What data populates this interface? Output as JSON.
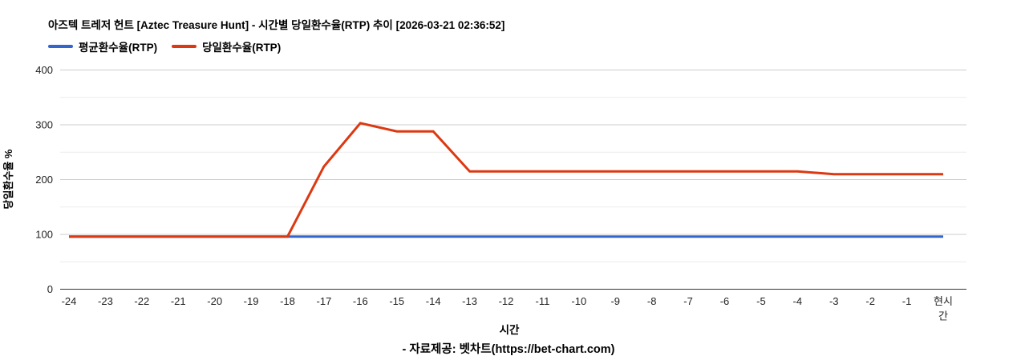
{
  "header": {
    "title": "아즈텍 트레저 헌트 [Aztec Treasure Hunt] - 시간별 당일환수율(RTP) 추이 [2026-03-21 02:36:52]"
  },
  "legend": [
    {
      "label": "평균환수율(RTP)",
      "color": "#3366CC"
    },
    {
      "label": "당일환수율(RTP)",
      "color": "#DC3912"
    }
  ],
  "chart_data": {
    "type": "line",
    "title": "아즈텍 트레저 헌트 [Aztec Treasure Hunt] - 시간별 당일환수율(RTP) 추이 [2026-03-21 02:36:52]",
    "x": [
      "-24",
      "-23",
      "-22",
      "-21",
      "-20",
      "-19",
      "-18",
      "-17",
      "-16",
      "-15",
      "-14",
      "-13",
      "-12",
      "-11",
      "-10",
      "-9",
      "-8",
      "-7",
      "-6",
      "-5",
      "-4",
      "-3",
      "-2",
      "-1",
      "현시간"
    ],
    "series": [
      {
        "name": "평균환수율(RTP)",
        "color": "#3366CC",
        "values": [
          96,
          96,
          96,
          96,
          96,
          96,
          96,
          96,
          96,
          96,
          96,
          96,
          96,
          96,
          96,
          96,
          96,
          96,
          96,
          96,
          96,
          96,
          96,
          96,
          96
        ]
      },
      {
        "name": "당일환수율(RTP)",
        "color": "#DC3912",
        "values": [
          96,
          96,
          96,
          96,
          96,
          96,
          96,
          224,
          303,
          288,
          288,
          215,
          215,
          215,
          215,
          215,
          215,
          215,
          215,
          215,
          215,
          210,
          210,
          210,
          210
        ]
      }
    ],
    "xlabel": "시간",
    "ylabel": "당일환수율 %",
    "ylim": [
      0,
      400
    ],
    "yticks": [
      0,
      100,
      200,
      300,
      400
    ],
    "minor_gridlines": [
      50,
      150,
      250,
      350
    ],
    "grid": true,
    "legend_position": "top-left"
  },
  "footer": {
    "credit": "- 자료제공: 벳차트(https://bet-chart.com)"
  },
  "style_colors": {
    "major_grid": "#cccccc",
    "minor_grid": "#ebebeb",
    "baseline": "#333333",
    "tick_text": "#222222",
    "axis_title_text": "#000000"
  }
}
